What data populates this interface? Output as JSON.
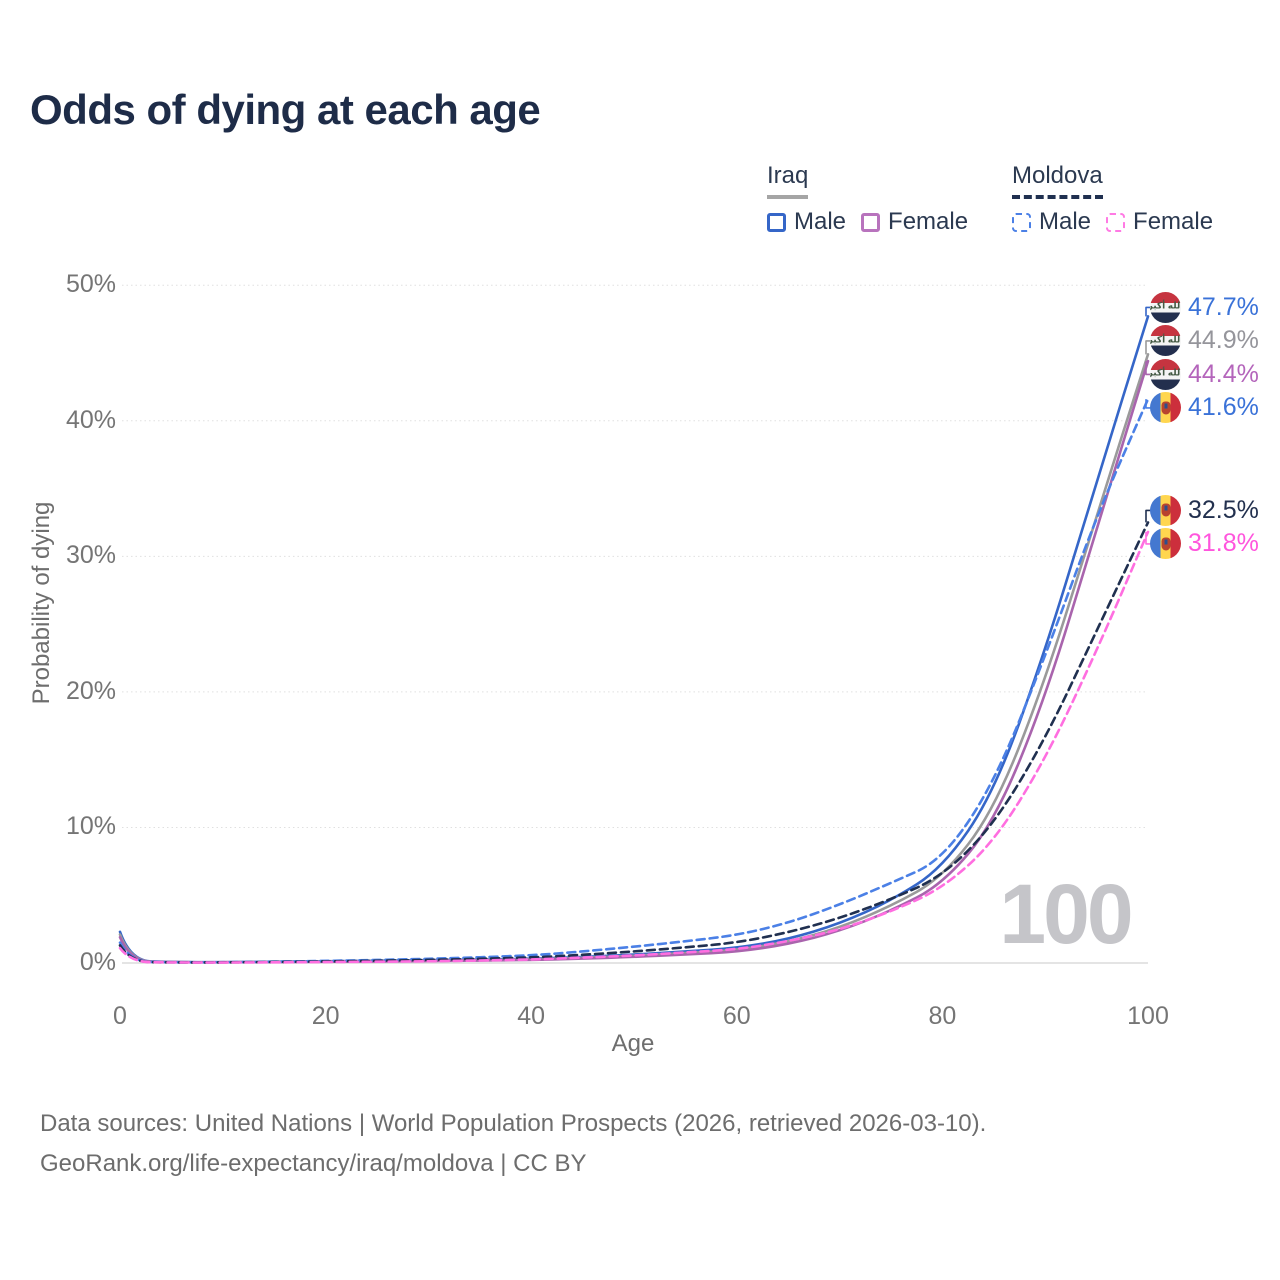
{
  "title": "Odds of dying at each age",
  "watermark_age": "100",
  "legend": {
    "groups": [
      {
        "label": "Iraq",
        "underline": "solid",
        "underline_color": "#a5a5a5",
        "items": [
          {
            "label": "Male",
            "color": "#3566c8",
            "dashed": false
          },
          {
            "label": "Female",
            "color": "#b873bd",
            "dashed": false
          }
        ]
      },
      {
        "label": "Moldova",
        "underline": "dashed",
        "underline_color": "#203050",
        "items": [
          {
            "label": "Male",
            "color": "#4b80e6",
            "dashed": true
          },
          {
            "label": "Female",
            "color": "#ff7ae4",
            "dashed": true
          }
        ]
      }
    ]
  },
  "chart_data": {
    "type": "line",
    "title": "Odds of dying at each age",
    "xlabel": "Age",
    "ylabel": "Probability of dying",
    "xlim": [
      0,
      100
    ],
    "ylim": [
      0,
      50
    ],
    "grid": "horizontal-dotted",
    "legend_position": "top-right",
    "x": [
      0,
      1,
      5,
      10,
      20,
      30,
      40,
      45,
      50,
      55,
      60,
      65,
      70,
      75,
      80,
      85,
      90,
      95,
      100
    ],
    "x_ticks": [
      0,
      20,
      40,
      60,
      80,
      100
    ],
    "y_ticks": [
      {
        "value": 0,
        "label": "0%"
      },
      {
        "value": 10,
        "label": "10%"
      },
      {
        "value": 20,
        "label": "20%"
      },
      {
        "value": 30,
        "label": "30%"
      },
      {
        "value": 40,
        "label": "40%"
      },
      {
        "value": 50,
        "label": "50%"
      }
    ],
    "series": [
      {
        "name": "Iraq Male",
        "flag": "iraq",
        "color": "#3566c8",
        "label_color": "#3a72d8",
        "dashed": false,
        "end_label": "47.7%",
        "values": [
          2.3,
          0.16,
          0.07,
          0.06,
          0.13,
          0.2,
          0.3,
          0.44,
          0.62,
          0.85,
          1.1,
          1.75,
          2.9,
          4.6,
          7.0,
          12.5,
          23.0,
          35.5,
          47.7
        ]
      },
      {
        "name": "Iraq Both sexes",
        "flag": "iraq",
        "color": "#9a9a9a",
        "label_color": "#95959b",
        "dashed": false,
        "end_label": "44.9%",
        "values": [
          2.1,
          0.14,
          0.06,
          0.05,
          0.11,
          0.17,
          0.26,
          0.38,
          0.53,
          0.73,
          0.95,
          1.55,
          2.6,
          4.2,
          6.3,
          11.2,
          20.8,
          33.0,
          44.9
        ]
      },
      {
        "name": "Iraq Female",
        "flag": "iraq",
        "color": "#a964ad",
        "label_color": "#b465bb",
        "dashed": false,
        "end_label": "44.4%",
        "values": [
          1.9,
          0.13,
          0.06,
          0.05,
          0.09,
          0.14,
          0.22,
          0.32,
          0.45,
          0.62,
          0.82,
          1.38,
          2.35,
          3.85,
          5.8,
          10.3,
          19.5,
          32.0,
          44.4
        ]
      },
      {
        "name": "Moldova Male",
        "flag": "moldova",
        "color": "#4b80e6",
        "label_color": "#3a72d8",
        "dashed": true,
        "end_label": "41.6%",
        "values": [
          1.5,
          0.1,
          0.05,
          0.05,
          0.15,
          0.3,
          0.55,
          0.85,
          1.2,
          1.6,
          2.05,
          2.95,
          4.3,
          5.9,
          7.6,
          13.2,
          22.6,
          33.0,
          41.6
        ]
      },
      {
        "name": "Moldova Both sexes",
        "flag": "moldova",
        "color": "#203050",
        "label_color": "#22304e",
        "dashed": true,
        "end_label": "32.5%",
        "values": [
          1.3,
          0.09,
          0.04,
          0.04,
          0.11,
          0.22,
          0.4,
          0.6,
          0.85,
          1.15,
          1.5,
          2.25,
          3.3,
          4.7,
          6.4,
          10.2,
          16.5,
          24.5,
          32.5
        ]
      },
      {
        "name": "Moldova Female",
        "flag": "moldova",
        "color": "#ff6ee0",
        "label_color": "#ff55dd",
        "dashed": true,
        "end_label": "31.8%",
        "values": [
          1.1,
          0.08,
          0.04,
          0.03,
          0.07,
          0.12,
          0.25,
          0.4,
          0.55,
          0.78,
          1.0,
          1.6,
          2.45,
          3.8,
          5.5,
          8.9,
          15.0,
          23.0,
          31.8
        ]
      }
    ]
  },
  "flags": {
    "iraq_script": "الله أكبر"
  },
  "footer": {
    "line1": "Data sources: United Nations | World Population Prospects (2026, retrieved 2026-03-10).",
    "line2": "GeoRank.org/life-expectancy/iraq/moldova | CC BY"
  }
}
